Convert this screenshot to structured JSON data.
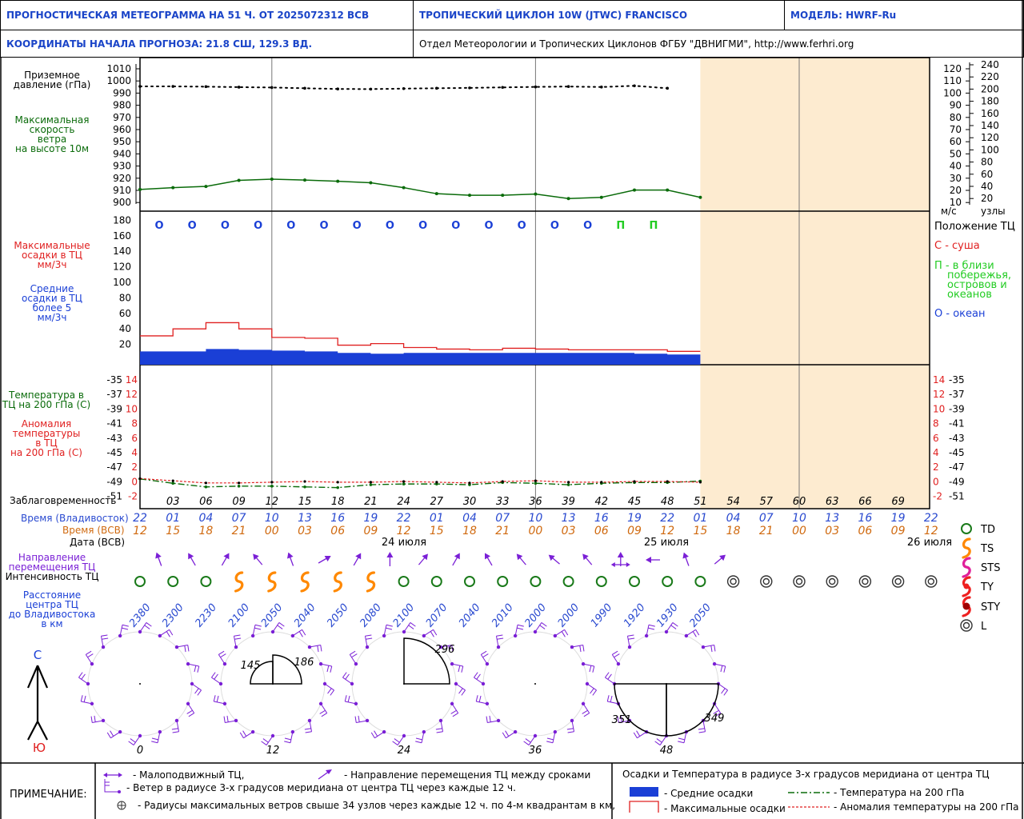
{
  "header": {
    "title": "ПРОГНОСТИЧЕСКАЯ МЕТЕОГРАММА НА 51 Ч. ОТ 2025072312 ВСВ",
    "cyclone": "ТРОПИЧЕСКИЙ ЦИКЛОН  10W  (JTWC)  FRANCISCO",
    "model": "МОДЕЛЬ:   HWRF-Ru",
    "coords": "КООРДИНАТЫ НАЧАЛА ПРОГНОЗА:  21.8  СШ,   129.3  ВД.",
    "org": "Отдел Метеорологии и Тропических Циклонов ФГБУ \"ДВНИГМИ\",  http://www.ferhri.org"
  },
  "labels": {
    "pressure": [
      "Приземное",
      "давление (гПа)"
    ],
    "wind": [
      "Максимальная",
      "скорость",
      "ветра",
      "на высоте 10м"
    ],
    "max_precip": [
      "Максимальные",
      "осадки в ТЦ",
      "мм/3ч"
    ],
    "avg_precip": [
      "Средние",
      "осадки в ТЦ",
      "более 5",
      "мм/3ч"
    ],
    "temp": [
      "Температура в",
      "ТЦ на 200 гПа (С)"
    ],
    "anom": [
      "Аномалия",
      "температуры",
      "в ТЦ",
      "на 200 гПа (С)"
    ],
    "lead": "Заблаговременность",
    "time_vlad": "Время (Владивосток)",
    "time_utc": "Время (ВСВ)",
    "date": "Дата (ВСВ)",
    "direction": [
      "Направление",
      "перемещения ТЦ"
    ],
    "intensity": "Интенсивность ТЦ",
    "distance": [
      "Расстояние",
      "центра ТЦ",
      "до Владивостока",
      "в км"
    ],
    "ms": "м/с",
    "knots": "узлы",
    "north": "С",
    "south": "Ю"
  },
  "position_legend": {
    "title": "Положение ТЦ",
    "land": "С - суша",
    "near": [
      "П - в близи",
      "побережья,",
      "островов и",
      "океанов"
    ],
    "ocean": "О - океан"
  },
  "intensity_legend": [
    "TD",
    "TS",
    "STS",
    "TY",
    "STY",
    "L"
  ],
  "dates": [
    "24 июля",
    "25 июля",
    "26 июля"
  ],
  "chart_data": {
    "type": "line",
    "lead_hours": [
      "03",
      "06",
      "09",
      "12",
      "15",
      "18",
      "21",
      "24",
      "27",
      "30",
      "33",
      "36",
      "39",
      "42",
      "45",
      "48",
      "51",
      "54",
      "57",
      "60",
      "63",
      "66",
      "69"
    ],
    "time_vlad": [
      "22",
      "01",
      "04",
      "07",
      "10",
      "13",
      "16",
      "19",
      "22",
      "01",
      "04",
      "07",
      "10",
      "13",
      "16",
      "19",
      "22",
      "01",
      "04",
      "07",
      "10",
      "13",
      "16",
      "19",
      "22"
    ],
    "time_utc": [
      "12",
      "15",
      "18",
      "21",
      "00",
      "03",
      "06",
      "09",
      "12",
      "15",
      "18",
      "21",
      "00",
      "03",
      "06",
      "09",
      "12",
      "15",
      "18",
      "21",
      "00",
      "03",
      "06",
      "09",
      "12"
    ],
    "pressure_ticks": [
      "1010",
      "1000",
      "990",
      "980",
      "970",
      "960",
      "950",
      "940",
      "930",
      "920",
      "910",
      "900"
    ],
    "pressure_hpa": [
      995.5,
      995.5,
      995.3,
      994.9,
      994.6,
      994.0,
      993.4,
      993.3,
      993.7,
      994.0,
      994.3,
      994.7,
      995.1,
      995.4,
      995.0,
      996.0,
      994.0
    ],
    "wind_ms_ticks": [
      "120",
      "110",
      "100",
      "90",
      "80",
      "70",
      "60",
      "50",
      "40",
      "30",
      "20",
      "10"
    ],
    "wind_kt_ticks": [
      "240",
      "220",
      "200",
      "180",
      "160",
      "140",
      "120",
      "100",
      "80",
      "60",
      "40",
      "20"
    ],
    "max_wind_ms": [
      18,
      19.5,
      20.5,
      25.5,
      26.5,
      25.8,
      24.8,
      23.5,
      19.5,
      14.5,
      13.2,
      13.2,
      14.2,
      10.5,
      11.5,
      17.5,
      17.5,
      11.5
    ],
    "precip_ticks": [
      "180",
      "160",
      "140",
      "120",
      "100",
      "80",
      "60",
      "40",
      "20"
    ],
    "position": [
      "О",
      "О",
      "О",
      "О",
      "О",
      "О",
      "О",
      "О",
      "О",
      "О",
      "О",
      "О",
      "О",
      "О",
      "П",
      "П"
    ],
    "max_precip": [
      31,
      40,
      48,
      40,
      29,
      28,
      19,
      21,
      16,
      14,
      13,
      15,
      14,
      13,
      13,
      13,
      11
    ],
    "avg_precip": [
      11,
      11,
      14,
      13,
      12,
      11,
      9,
      8,
      9,
      9,
      9,
      9,
      9,
      9,
      9,
      8,
      7
    ],
    "temp_c_ticks": [
      "-35",
      "-37",
      "-39",
      "-41",
      "-43",
      "-45",
      "-47",
      "-49",
      "-51"
    ],
    "anom_ticks": [
      "14",
      "12",
      "10",
      "8",
      "6",
      "4",
      "2",
      "0",
      "-2"
    ],
    "temp_200": [
      -48.6,
      -49.2,
      -49.7,
      -49.6,
      -49.6,
      -49.7,
      -49.8,
      -49.4,
      -49.3,
      -49.3,
      -49.4,
      -49.1,
      -49.2,
      -49.4,
      -49.2,
      -49.1,
      -49.1,
      -48.9
    ],
    "anom_200": [
      0.4,
      0.1,
      -0.2,
      -0.2,
      -0.1,
      0,
      -0.1,
      -0.1,
      0,
      -0.1,
      -0.2,
      0,
      0.1,
      -0.1,
      -0.1,
      0,
      0,
      -0.1
    ],
    "direction_deg": [
      340,
      330,
      30,
      320,
      340,
      60,
      30,
      0,
      40,
      30,
      330,
      320,
      310,
      320,
      0,
      270,
      340,
      50
    ],
    "intensity": [
      "TD",
      "TD",
      "TD",
      "TS",
      "TS",
      "TS",
      "TS",
      "TS",
      "TD",
      "TD",
      "TD",
      "TD",
      "TD",
      "TD",
      "TD",
      "TD",
      "TD",
      "TD",
      "L",
      "L",
      "L",
      "L",
      "L",
      "L",
      "L"
    ],
    "distance_km": [
      "2380",
      "2300",
      "2230",
      "2100",
      "2050",
      "2040",
      "2050",
      "2080",
      "2100",
      "2070",
      "2040",
      "2010",
      "2000",
      "2000",
      "1990",
      "1920",
      "1930",
      "2050"
    ],
    "radii_hours": [
      "0",
      "12",
      "24",
      "36",
      "48"
    ],
    "radii_labels": [
      [],
      [
        "145",
        "186"
      ],
      [
        "296"
      ],
      [],
      [
        "351",
        "349"
      ]
    ]
  },
  "footer": {
    "note": "ПРИМЕЧАНИЕ:",
    "stationary": "- Малоподвижный ТЦ,",
    "motion_dir": "- Направление перемещения ТЦ между сроками",
    "wind_radius": "- Ветер в радиусе 3-х градусов меридиана от центра ТЦ через каждые 12 ч.",
    "max_radius": "- Радиусы максимальных ветров свыше 34 узлов через каждые 12 ч. по 4-м квадрантам в км,",
    "precip_title": "Осадки и Температура в радиусе 3-х градусов меридиана от центра ТЦ",
    "avg": "- Средние осадки",
    "max": "- Максимальные осадки",
    "temp": "- Температура на 200 гПа",
    "anom": "- Аномалия температуры на 200 гПа"
  },
  "colors": {
    "header_blue": "#1a44c8",
    "pressure": "#000000",
    "wind": "#0a6b0a",
    "max_precip": "#e02020",
    "avg_precip": "#1a3fd6",
    "forecast_shade": "#fdebd0",
    "vlad_time": "#2a4ad0",
    "utc_time": "#d06a10",
    "arrow": "#7a1fd6",
    "td": "#1a7a1a",
    "ts": "#ff8800",
    "sts": "#e0209a",
    "ty": "#ee2020"
  }
}
